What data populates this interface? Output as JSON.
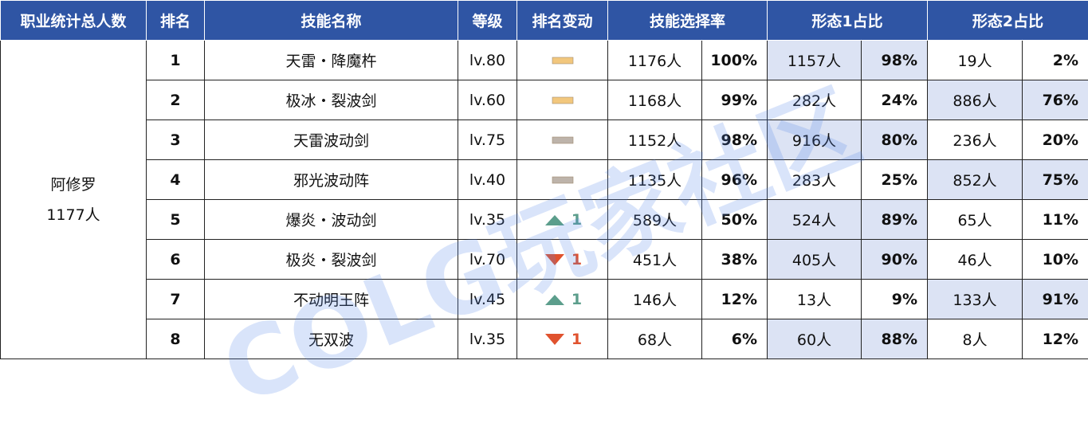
{
  "header": {
    "columns": [
      "职业统计总人数",
      "排名",
      "技能名称",
      "等级",
      "排名变动",
      "技能选择率",
      "形态1占比",
      "形态2占比"
    ]
  },
  "class": {
    "name": "阿修罗",
    "total": "1177人"
  },
  "watermark": "COLG玩家社区",
  "rows": [
    {
      "rank": "1",
      "skill": "天雷・降魔杵",
      "level": "lv.80",
      "change": {
        "trend": "flat",
        "color": "#f2c77d"
      },
      "count": "1176人",
      "rate": "100%",
      "form1": "1157人",
      "form1_pct": "98%",
      "form2": "19人",
      "form2_pct": "2%",
      "highlight": 1
    },
    {
      "rank": "2",
      "skill": "极冰・裂波剑",
      "level": "lv.60",
      "change": {
        "trend": "flat",
        "color": "#f2c77d"
      },
      "count": "1168人",
      "rate": "99%",
      "form1": "282人",
      "form1_pct": "24%",
      "form2": "886人",
      "form2_pct": "76%",
      "highlight": 2
    },
    {
      "rank": "3",
      "skill": "天雷波动剑",
      "level": "lv.75",
      "change": {
        "trend": "flat",
        "color": "#bdb3aa"
      },
      "count": "1152人",
      "rate": "98%",
      "form1": "916人",
      "form1_pct": "80%",
      "form2": "236人",
      "form2_pct": "20%",
      "highlight": 1
    },
    {
      "rank": "4",
      "skill": "邪光波动阵",
      "level": "lv.40",
      "change": {
        "trend": "flat",
        "color": "#bdb3aa"
      },
      "count": "1135人",
      "rate": "96%",
      "form1": "283人",
      "form1_pct": "25%",
      "form2": "852人",
      "form2_pct": "75%",
      "highlight": 2
    },
    {
      "rank": "5",
      "skill": "爆炎・波动剑",
      "level": "lv.35",
      "change": {
        "trend": "up",
        "color": "#5c9e8c",
        "amount": "1"
      },
      "count": "589人",
      "rate": "50%",
      "form1": "524人",
      "form1_pct": "89%",
      "form2": "65人",
      "form2_pct": "11%",
      "highlight": 1
    },
    {
      "rank": "6",
      "skill": "极炎・裂波剑",
      "level": "lv.70",
      "change": {
        "trend": "down",
        "color": "#e0522e",
        "amount": "1"
      },
      "count": "451人",
      "rate": "38%",
      "form1": "405人",
      "form1_pct": "90%",
      "form2": "46人",
      "form2_pct": "10%",
      "highlight": 1
    },
    {
      "rank": "7",
      "skill": "不动明王阵",
      "level": "lv.45",
      "change": {
        "trend": "up",
        "color": "#5c9e8c",
        "amount": "1"
      },
      "count": "146人",
      "rate": "12%",
      "form1": "13人",
      "form1_pct": "9%",
      "form2": "133人",
      "form2_pct": "91%",
      "highlight": 2
    },
    {
      "rank": "8",
      "skill": "无双波",
      "level": "lv.35",
      "change": {
        "trend": "down",
        "color": "#e0522e",
        "amount": "1"
      },
      "count": "68人",
      "rate": "6%",
      "form1": "60人",
      "form1_pct": "88%",
      "form2": "8人",
      "form2_pct": "12%",
      "highlight": 1
    }
  ]
}
